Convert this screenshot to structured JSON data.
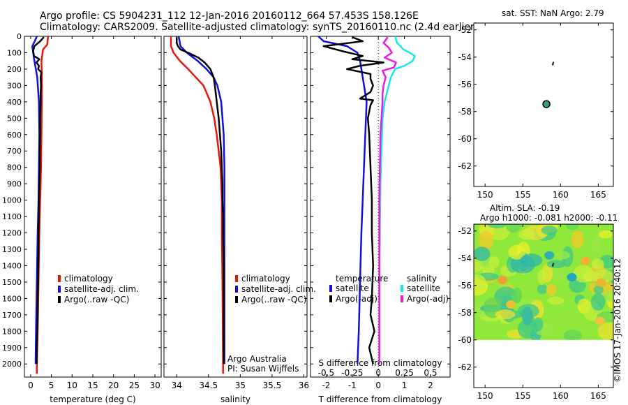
{
  "header": {
    "line1": "Argo profile: CS 5904231_112 12-Jan-2016 20160112_664 57.453S 158.126E",
    "line2": "Climatology: CARS2009. Satellite-adjusted climatology: synTS_20160110.nc (2.4d earlier)"
  },
  "colors": {
    "climatology": "#e8150a",
    "satellite": "#1010d8",
    "argo": "#000000",
    "satellite_s": "#19e6e6",
    "argo_s": "#e619e6",
    "marker": "#2ea07a"
  },
  "depth_axis": {
    "ticks": [
      "0",
      "100",
      "200",
      "300",
      "400",
      "500",
      "600",
      "700",
      "800",
      "900",
      "1000",
      "1100",
      "1200",
      "1300",
      "1400",
      "1500",
      "1600",
      "1700",
      "1800",
      "1900",
      "2000"
    ],
    "values": [
      0,
      100,
      200,
      300,
      400,
      500,
      600,
      700,
      800,
      900,
      1000,
      1100,
      1200,
      1300,
      1400,
      1500,
      1600,
      1700,
      1800,
      1900,
      2000
    ],
    "max": 2080
  },
  "chart_data": [
    {
      "type": "line",
      "id": "temperature",
      "xlabel": "temperature (deg C)",
      "xlim": [
        -1.5,
        31.5
      ],
      "xticks": [
        "0",
        "5",
        "10",
        "15",
        "20",
        "25",
        "30"
      ],
      "xtick_values": [
        0,
        5,
        10,
        15,
        20,
        25,
        30
      ],
      "legend": [
        "climatology",
        "satellite-adj. clim.",
        "Argo(..raw -QC)"
      ],
      "series": [
        {
          "name": "climatology",
          "depth": [
            0,
            50,
            80,
            150,
            250,
            400,
            600,
            800,
            1000,
            1200,
            1500,
            1800,
            2000,
            2060
          ],
          "values": [
            4.2,
            4.0,
            3.0,
            2.6,
            2.7,
            2.7,
            2.6,
            2.5,
            2.3,
            2.1,
            1.9,
            1.7,
            1.5,
            1.5
          ]
        },
        {
          "name": "satellite-adj. clim.",
          "depth": [
            0,
            30,
            60,
            100,
            150,
            250,
            400,
            600,
            800,
            1000,
            1200,
            1500,
            1800,
            2000
          ],
          "values": [
            1.5,
            1.0,
            0.4,
            0.6,
            0.9,
            1.6,
            2.0,
            2.1,
            2.0,
            1.9,
            1.7,
            1.5,
            1.3,
            1.2
          ]
        },
        {
          "name": "Argo(..raw -QC)",
          "depth": [
            5,
            30,
            60,
            90,
            120,
            140,
            160,
            180,
            200,
            220,
            250,
            300,
            350,
            400,
            500,
            600,
            700,
            800,
            900,
            1000,
            1100,
            1200,
            1300,
            1400,
            1500,
            1600,
            1700,
            1800,
            1900,
            2000
          ],
          "values": [
            3.2,
            2.3,
            0.9,
            0.6,
            0.8,
            2.1,
            1.4,
            2.0,
            1.8,
            2.6,
            2.4,
            2.5,
            2.4,
            2.4,
            2.3,
            2.3,
            2.2,
            2.2,
            2.1,
            2.0,
            2.0,
            1.9,
            1.9,
            1.8,
            1.8,
            1.7,
            1.7,
            1.6,
            1.5,
            1.5
          ]
        }
      ]
    },
    {
      "type": "line",
      "id": "salinity",
      "xlabel": "salinity",
      "xlim": [
        33.8,
        36.05
      ],
      "xticks": [
        "34",
        "34.5",
        "35",
        "35.5",
        "36"
      ],
      "xtick_values": [
        34,
        34.5,
        35,
        35.5,
        36
      ],
      "legend": [
        "climatology",
        "satellite-adj. clim.",
        "Argo(..raw -QC)"
      ],
      "annotation": [
        "Argo Australia",
        "PI: Susan Wijffels"
      ],
      "series": [
        {
          "name": "climatology",
          "depth": [
            0,
            60,
            100,
            150,
            200,
            250,
            300,
            400,
            500,
            600,
            700,
            800,
            1000,
            1200,
            1500,
            2000,
            2060
          ],
          "values": [
            33.91,
            33.91,
            33.95,
            34.05,
            34.18,
            34.3,
            34.42,
            34.53,
            34.59,
            34.63,
            34.66,
            34.69,
            34.71,
            34.71,
            34.72,
            34.73,
            34.73
          ]
        },
        {
          "name": "satellite-adj. clim.",
          "depth": [
            0,
            60,
            100,
            150,
            200,
            250,
            300,
            400,
            500,
            600,
            700,
            800,
            1000,
            1500,
            2000
          ],
          "values": [
            34.03,
            34.06,
            34.16,
            34.33,
            34.47,
            34.58,
            34.64,
            34.7,
            34.72,
            34.74,
            34.745,
            34.75,
            34.75,
            34.75,
            34.75
          ]
        },
        {
          "name": "Argo(..raw -QC)",
          "depth": [
            5,
            40,
            60,
            80,
            100,
            130,
            160,
            200,
            250,
            300,
            400,
            500,
            600,
            700,
            800,
            900,
            1000,
            1100,
            1200,
            1400,
            1600,
            1800,
            2000
          ],
          "values": [
            34.0,
            34.0,
            34.02,
            34.06,
            34.18,
            34.34,
            34.44,
            34.53,
            34.58,
            34.6,
            34.63,
            34.66,
            34.68,
            34.7,
            34.71,
            34.72,
            34.72,
            34.73,
            34.73,
            34.74,
            34.74,
            34.74,
            34.74
          ]
        }
      ]
    },
    {
      "type": "line",
      "id": "difference",
      "xlabel": "T difference from climatology",
      "top_label": "S difference from climatology",
      "xlim": [
        -2.6,
        2.75
      ],
      "xticks": [
        "-2",
        "-1",
        "0",
        "1",
        "2"
      ],
      "xtick_values": [
        -2,
        -1,
        0,
        1,
        2
      ],
      "sticks": [
        "-0.5",
        "-0.25",
        "0",
        "0.25",
        "0.5"
      ],
      "stick_values": [
        -0.5,
        -0.25,
        0,
        0.25,
        0.5
      ],
      "s_scale": 0.25,
      "legend_titles": [
        "temperature",
        "salinity"
      ],
      "legend": [
        "satellite",
        "Argo(-adj)",
        "satellite",
        "Argo(-adj)"
      ],
      "series": [
        {
          "name": "satellite",
          "var": "T",
          "depth": [
            0,
            30,
            60,
            100,
            150,
            250,
            400,
            600,
            800,
            1000,
            1200,
            1500,
            1800,
            2000
          ],
          "values": [
            -2.3,
            -2.1,
            -1.2,
            -0.8,
            -0.7,
            -0.6,
            -0.45,
            -0.5,
            -0.55,
            -0.6,
            -0.65,
            -0.7,
            -0.75,
            -0.8
          ]
        },
        {
          "name": "Argo(-adj)",
          "var": "T",
          "depth": [
            5,
            30,
            60,
            90,
            120,
            140,
            160,
            180,
            200,
            230,
            260,
            300,
            340,
            380,
            390,
            420,
            500,
            600,
            800,
            1000,
            1200,
            1400,
            1600,
            1700,
            1800,
            1900,
            2000
          ],
          "values": [
            -1.0,
            -0.6,
            -2.1,
            -1.4,
            -0.6,
            -1.0,
            0.2,
            -0.7,
            -1.2,
            -0.3,
            -0.3,
            -0.2,
            -0.3,
            -0.7,
            -0.2,
            -0.3,
            -0.4,
            -0.35,
            -0.3,
            -0.25,
            -0.25,
            -0.2,
            -0.25,
            -0.3,
            -0.15,
            -0.35,
            -0.2
          ]
        },
        {
          "name": "satellite",
          "var": "S",
          "depth": [
            0,
            40,
            80,
            100,
            120,
            150,
            180,
            200,
            250,
            300,
            400,
            500,
            700,
            900,
            1200,
            1500,
            1800,
            2000
          ],
          "values": [
            0.16,
            0.18,
            0.24,
            0.3,
            0.35,
            0.33,
            0.25,
            0.16,
            0.12,
            0.1,
            0.06,
            0.04,
            0.03,
            0.02,
            0.015,
            0.01,
            0.01,
            0.01
          ]
        },
        {
          "name": "Argo(-adj)",
          "var": "S",
          "depth": [
            5,
            40,
            70,
            100,
            130,
            160,
            190,
            210,
            250,
            300,
            350,
            400,
            500,
            600,
            800,
            1000,
            1200,
            1500,
            1800,
            2000
          ],
          "values": [
            0.09,
            0.05,
            0.1,
            0.13,
            0.06,
            0.17,
            0.15,
            0.04,
            0.07,
            0.05,
            0.04,
            0.04,
            0.03,
            0.02,
            0.015,
            0.01,
            0.01,
            0.01,
            0.01,
            0.01
          ]
        }
      ]
    }
  ],
  "map_top": {
    "title": "sat. SST: NaN Argo: 2.79",
    "xlim": [
      148.5,
      167
    ],
    "ylim": [
      -63.5,
      -51.5
    ],
    "xticks": [
      "150",
      "155",
      "160",
      "165"
    ],
    "xtick_values": [
      150,
      155,
      160,
      165
    ],
    "yticks": [
      "-52",
      "-54",
      "-56",
      "-58",
      "-60",
      "-62"
    ],
    "ytick_values": [
      -52,
      -54,
      -56,
      -58,
      -60,
      -62
    ],
    "float_position": {
      "lon": 158.126,
      "lat": -57.453
    },
    "track": {
      "lon": [
        158.95,
        159.05
      ],
      "lat": [
        -54.6,
        -54.35
      ]
    }
  },
  "map_bottom": {
    "title1": "Altim. SLA: -0.19",
    "title2": "Argo h1000: -0.081 h2000: -0.11",
    "xlim": [
      148.5,
      167
    ],
    "ylim": [
      -63.5,
      -51.5
    ],
    "xticks": [
      "150",
      "155",
      "160",
      "165"
    ],
    "xtick_values": [
      150,
      155,
      160,
      165
    ],
    "yticks": [
      "-52",
      "-54",
      "-56",
      "-58",
      "-60",
      "-62"
    ],
    "ytick_values": [
      -52,
      -54,
      -56,
      -58,
      -60,
      -62
    ],
    "field_extent": {
      "lon": [
        148.5,
        167
      ],
      "lat": [
        -60,
        -51.5
      ]
    },
    "track": {
      "lon": [
        158.95,
        159.05
      ],
      "lat": [
        -54.6,
        -54.35
      ]
    }
  },
  "footer": "©IMOS 17-Jan-2016 20:40:12"
}
